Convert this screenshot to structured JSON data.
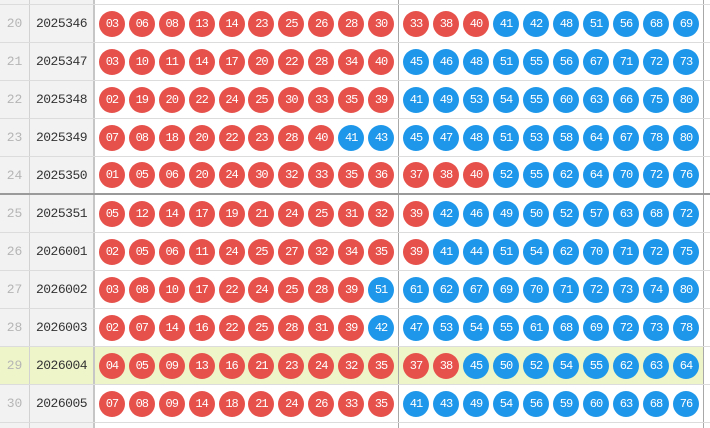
{
  "table": {
    "red_max": 40,
    "colors": {
      "red_ball": "#e6514c",
      "blue_ball": "#1e97ea",
      "highlight_row": "#eef6c9",
      "cell_background": "#f2f2f2"
    },
    "rows": [
      {
        "index": "20",
        "period": "2025346",
        "front": [
          "03",
          "06",
          "08",
          "13",
          "14",
          "23",
          "25",
          "26",
          "28",
          "30"
        ],
        "back": [
          "33",
          "38",
          "40",
          "41",
          "42",
          "48",
          "51",
          "56",
          "68",
          "69"
        ],
        "highlighted": false,
        "thick_bottom": false
      },
      {
        "index": "21",
        "period": "2025347",
        "front": [
          "03",
          "10",
          "11",
          "14",
          "17",
          "20",
          "22",
          "28",
          "34",
          "40"
        ],
        "back": [
          "45",
          "46",
          "48",
          "51",
          "55",
          "56",
          "67",
          "71",
          "72",
          "73"
        ],
        "highlighted": false,
        "thick_bottom": false
      },
      {
        "index": "22",
        "period": "2025348",
        "front": [
          "02",
          "19",
          "20",
          "22",
          "24",
          "25",
          "30",
          "33",
          "35",
          "39"
        ],
        "back": [
          "41",
          "49",
          "53",
          "54",
          "55",
          "60",
          "63",
          "66",
          "75",
          "80"
        ],
        "highlighted": false,
        "thick_bottom": false
      },
      {
        "index": "23",
        "period": "2025349",
        "front": [
          "07",
          "08",
          "18",
          "20",
          "22",
          "23",
          "28",
          "40",
          "41",
          "43"
        ],
        "back": [
          "45",
          "47",
          "48",
          "51",
          "53",
          "58",
          "64",
          "67",
          "78",
          "80"
        ],
        "highlighted": false,
        "thick_bottom": false
      },
      {
        "index": "24",
        "period": "2025350",
        "front": [
          "01",
          "05",
          "06",
          "20",
          "24",
          "30",
          "32",
          "33",
          "35",
          "36"
        ],
        "back": [
          "37",
          "38",
          "40",
          "52",
          "55",
          "62",
          "64",
          "70",
          "72",
          "76"
        ],
        "highlighted": false,
        "thick_bottom": true
      },
      {
        "index": "25",
        "period": "2025351",
        "front": [
          "05",
          "12",
          "14",
          "17",
          "19",
          "21",
          "24",
          "25",
          "31",
          "32"
        ],
        "back": [
          "39",
          "42",
          "46",
          "49",
          "50",
          "52",
          "57",
          "63",
          "68",
          "72"
        ],
        "highlighted": false,
        "thick_bottom": false
      },
      {
        "index": "26",
        "period": "2026001",
        "front": [
          "02",
          "05",
          "06",
          "11",
          "24",
          "25",
          "27",
          "32",
          "34",
          "35"
        ],
        "back": [
          "39",
          "41",
          "44",
          "51",
          "54",
          "62",
          "70",
          "71",
          "72",
          "75"
        ],
        "highlighted": false,
        "thick_bottom": false
      },
      {
        "index": "27",
        "period": "2026002",
        "front": [
          "03",
          "08",
          "10",
          "17",
          "22",
          "24",
          "25",
          "28",
          "39",
          "51"
        ],
        "back": [
          "61",
          "62",
          "67",
          "69",
          "70",
          "71",
          "72",
          "73",
          "74",
          "80"
        ],
        "highlighted": false,
        "thick_bottom": false
      },
      {
        "index": "28",
        "period": "2026003",
        "front": [
          "02",
          "07",
          "14",
          "16",
          "22",
          "25",
          "28",
          "31",
          "39",
          "42"
        ],
        "back": [
          "47",
          "53",
          "54",
          "55",
          "61",
          "68",
          "69",
          "72",
          "73",
          "78"
        ],
        "highlighted": false,
        "thick_bottom": false
      },
      {
        "index": "29",
        "period": "2026004",
        "front": [
          "04",
          "05",
          "09",
          "13",
          "16",
          "21",
          "23",
          "24",
          "32",
          "35"
        ],
        "back": [
          "37",
          "38",
          "45",
          "50",
          "52",
          "54",
          "55",
          "62",
          "63",
          "64"
        ],
        "highlighted": true,
        "thick_bottom": false
      },
      {
        "index": "30",
        "period": "2026005",
        "front": [
          "07",
          "08",
          "09",
          "14",
          "18",
          "21",
          "24",
          "26",
          "33",
          "35"
        ],
        "back": [
          "41",
          "43",
          "49",
          "54",
          "56",
          "59",
          "60",
          "63",
          "68",
          "76"
        ],
        "highlighted": false,
        "thick_bottom": false
      }
    ]
  }
}
